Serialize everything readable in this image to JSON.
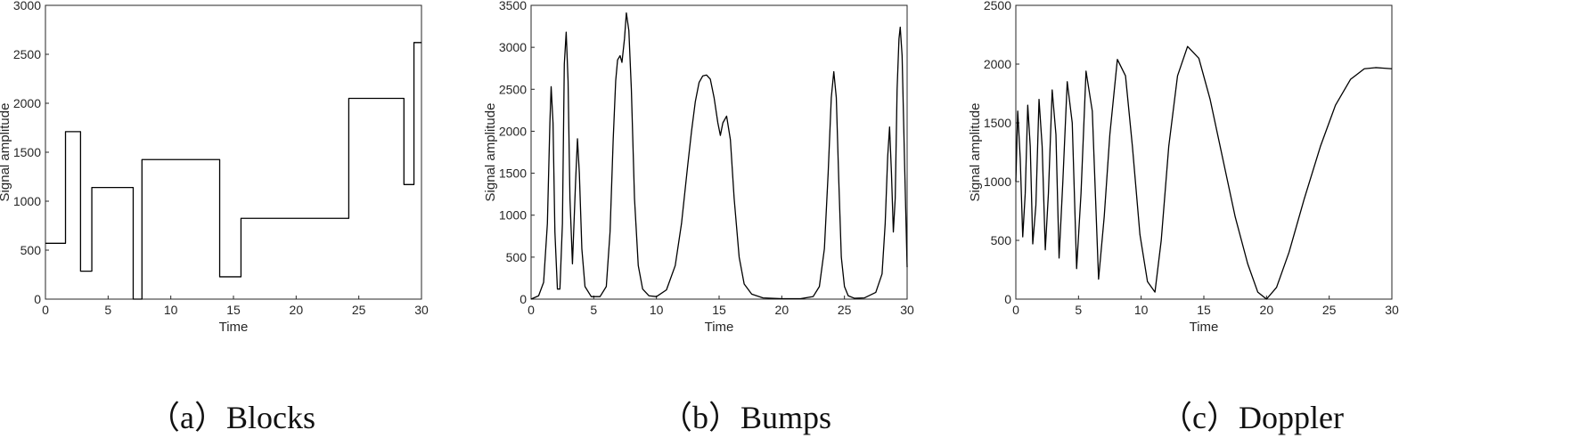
{
  "chart_data": [
    {
      "type": "line",
      "caption": "（a）Blocks",
      "xlabel": "Time",
      "ylabel": "Signal amplitude",
      "xlim": [
        0,
        30
      ],
      "ylim": [
        0,
        3000
      ],
      "xticks": [
        0,
        5,
        10,
        15,
        20,
        25,
        30
      ],
      "yticks": [
        0,
        500,
        1000,
        1500,
        2000,
        2500,
        3000
      ],
      "color": "#000000",
      "series": [
        {
          "x": [
            0,
            1.6,
            1.6,
            2.8,
            2.8,
            3.7,
            3.7,
            7.0,
            7.0,
            7.7,
            7.7,
            13.9,
            13.9,
            15.6,
            15.6,
            24.2,
            24.2,
            28.6,
            28.6,
            29.4,
            29.4,
            30.0
          ],
          "y": [
            570,
            570,
            1710,
            1710,
            285,
            285,
            1140,
            1140,
            0,
            0,
            1425,
            1425,
            228,
            228,
            825,
            825,
            2050,
            2050,
            1170,
            1170,
            2620,
            2620
          ]
        }
      ]
    },
    {
      "type": "line",
      "caption": "（b）Bumps",
      "xlabel": "Time",
      "ylabel": "Signal amplitude",
      "xlim": [
        0,
        30
      ],
      "ylim": [
        0,
        3500
      ],
      "xticks": [
        0,
        5,
        10,
        15,
        20,
        25,
        30
      ],
      "yticks": [
        0,
        500,
        1000,
        1500,
        2000,
        2500,
        3000,
        3500
      ],
      "color": "#000000",
      "series": [
        {
          "x": [
            0,
            0.6,
            1.0,
            1.3,
            1.5,
            1.6,
            1.75,
            1.9,
            2.1,
            2.3,
            2.5,
            2.65,
            2.8,
            2.95,
            3.1,
            3.3,
            3.55,
            3.7,
            3.85,
            4.05,
            4.3,
            4.8,
            5.5,
            6.0,
            6.3,
            6.55,
            6.75,
            6.9,
            7.1,
            7.25,
            7.45,
            7.6,
            7.8,
            8.0,
            8.25,
            8.55,
            8.9,
            9.4,
            10.0,
            10.8,
            11.5,
            12.0,
            12.5,
            12.8,
            13.1,
            13.4,
            13.7,
            14.0,
            14.3,
            14.6,
            14.9,
            15.1,
            15.3,
            15.6,
            15.9,
            16.2,
            16.6,
            17.0,
            17.6,
            18.5,
            20.0,
            21.5,
            22.5,
            23.0,
            23.4,
            23.7,
            23.95,
            24.15,
            24.35,
            24.55,
            24.75,
            25.0,
            25.3,
            25.8,
            26.6,
            27.5,
            28.0,
            28.25,
            28.45,
            28.6,
            28.75,
            28.9,
            29.05,
            29.2,
            29.35,
            29.45,
            29.6,
            29.8,
            30.0
          ],
          "y": [
            0,
            40,
            200,
            900,
            2100,
            2530,
            2100,
            800,
            120,
            120,
            900,
            2800,
            3180,
            2600,
            1200,
            420,
            1400,
            1910,
            1500,
            600,
            150,
            30,
            30,
            150,
            800,
            1900,
            2600,
            2850,
            2900,
            2820,
            3100,
            3410,
            3200,
            2500,
            1200,
            400,
            120,
            40,
            30,
            110,
            400,
            900,
            1600,
            2000,
            2350,
            2580,
            2660,
            2670,
            2620,
            2400,
            2100,
            1950,
            2100,
            2180,
            1900,
            1200,
            500,
            180,
            60,
            15,
            5,
            5,
            30,
            150,
            600,
            1500,
            2400,
            2710,
            2400,
            1400,
            500,
            150,
            40,
            10,
            15,
            80,
            300,
            900,
            1700,
            2050,
            1500,
            800,
            1200,
            2500,
            3100,
            3240,
            2900,
            1600,
            380
          ]
        }
      ]
    },
    {
      "type": "line",
      "caption": "（c）Doppler",
      "xlabel": "Time",
      "ylabel": "Signal amplitude",
      "xlim": [
        0,
        30
      ],
      "ylim": [
        0,
        2500
      ],
      "xticks": [
        0,
        5,
        10,
        15,
        20,
        25,
        30
      ],
      "yticks": [
        0,
        500,
        1000,
        1500,
        2000,
        2500
      ],
      "color": "#000000",
      "series": [
        {
          "x": [
            0,
            0.15,
            0.35,
            0.55,
            0.75,
            0.95,
            1.15,
            1.35,
            1.6,
            1.85,
            2.1,
            2.35,
            2.6,
            2.9,
            3.2,
            3.45,
            3.75,
            4.1,
            4.5,
            4.85,
            5.2,
            5.6,
            6.1,
            6.6,
            7.05,
            7.5,
            8.1,
            8.75,
            9.3,
            9.9,
            10.5,
            11.1,
            11.6,
            12.2,
            12.9,
            13.7,
            14.6,
            15.5,
            16.5,
            17.5,
            18.5,
            19.3,
            20.0,
            20.8,
            21.8,
            23.0,
            24.3,
            25.5,
            26.7,
            27.8,
            28.7,
            29.4,
            30.0
          ],
          "y": [
            1000,
            1600,
            1200,
            530,
            900,
            1650,
            1300,
            470,
            800,
            1700,
            1300,
            420,
            900,
            1780,
            1400,
            350,
            1000,
            1850,
            1500,
            260,
            900,
            1940,
            1600,
            170,
            700,
            1400,
            2040,
            1900,
            1300,
            550,
            150,
            60,
            500,
            1300,
            1900,
            2150,
            2050,
            1700,
            1200,
            700,
            300,
            60,
            0,
            100,
            400,
            850,
            1300,
            1650,
            1870,
            1960,
            1970,
            1965,
            1960
          ]
        }
      ]
    }
  ]
}
